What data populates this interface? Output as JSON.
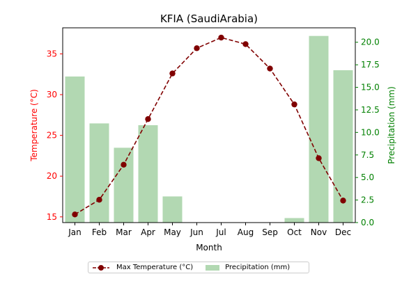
{
  "chart_data": {
    "type": "bar+line",
    "title": "KFIA (SaudiArabia)",
    "xlabel": "Month",
    "ylabel_left": "Temperature (°C)",
    "ylabel_right": "Precipitation (mm)",
    "categories": [
      "Jan",
      "Feb",
      "Mar",
      "Apr",
      "May",
      "Jun",
      "Jul",
      "Aug",
      "Sep",
      "Oct",
      "Nov",
      "Dec"
    ],
    "left_axis": {
      "ylim": [
        14.3,
        38.2
      ],
      "ticks": [
        15,
        20,
        25,
        30,
        35
      ],
      "color": "#ff0000"
    },
    "right_axis": {
      "ylim": [
        0,
        21.6
      ],
      "ticks": [
        0.0,
        2.5,
        5.0,
        7.5,
        10.0,
        12.5,
        15.0,
        17.5,
        20.0
      ],
      "color": "#008000"
    },
    "series": [
      {
        "name": "Max Temperature (°C)",
        "type": "line",
        "axis": "left",
        "color": "#800000",
        "values": [
          15.3,
          17.1,
          21.4,
          27.0,
          32.6,
          35.7,
          37.0,
          36.2,
          33.2,
          28.8,
          22.2,
          17.0
        ]
      },
      {
        "name": "Precipitation (mm)",
        "type": "bar",
        "axis": "right",
        "color": "#b2d8b2",
        "values": [
          16.2,
          11.0,
          8.3,
          10.8,
          2.9,
          0.0,
          0.0,
          0.0,
          0.0,
          0.5,
          20.7,
          16.9
        ]
      }
    ],
    "legend_position": "bottom-center",
    "grid": false
  }
}
